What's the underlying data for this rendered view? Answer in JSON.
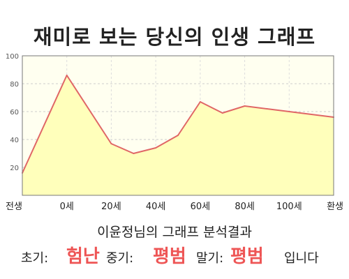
{
  "title": "재미로 보는 당신의 인생 그래프",
  "subtitle": "이윤정님의 그래프 분석결과",
  "result": {
    "early_label": "초기:",
    "early_value": "험난",
    "mid_label": "중기:",
    "mid_value": "평범",
    "late_label": "말기:",
    "late_value": "평범",
    "suffix": "입니다"
  },
  "colors": {
    "plot_bg": "#fffff0",
    "area_fill": "#ffffbb",
    "line": "#e06666",
    "accent": "#ee5555"
  },
  "chart_data": {
    "type": "area",
    "title": "재미로 보는 당신의 인생 그래프",
    "xlabel": "",
    "ylabel": "",
    "x_tick_labels": [
      "전생",
      "0세",
      "20세",
      "40세",
      "60세",
      "80세",
      "100세",
      "환생"
    ],
    "y_ticks": [
      20,
      40,
      60,
      80,
      100
    ],
    "ylim": [
      0,
      100
    ],
    "grid": true,
    "series": [
      {
        "x": [
          -20,
          0,
          20,
          30,
          40,
          50,
          60,
          70,
          80,
          90,
          100,
          120
        ],
        "values": [
          16,
          86,
          37,
          30,
          34,
          43,
          67,
          59,
          64,
          62,
          60,
          56
        ]
      }
    ]
  }
}
